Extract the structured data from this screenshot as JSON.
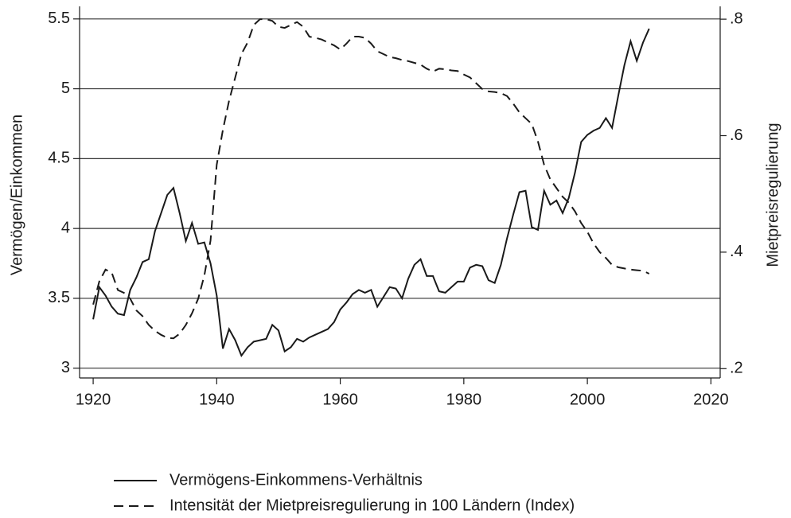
{
  "chart_data": {
    "type": "line",
    "xlabel": null,
    "ylabel": "Vermögen/Einkommen",
    "y2label": "Mietpreisregulierung",
    "x": [
      1920,
      1921,
      1922,
      1923,
      1924,
      1925,
      1926,
      1927,
      1928,
      1929,
      1930,
      1931,
      1932,
      1933,
      1934,
      1935,
      1936,
      1937,
      1938,
      1939,
      1940,
      1941,
      1942,
      1943,
      1944,
      1945,
      1946,
      1947,
      1948,
      1949,
      1950,
      1951,
      1952,
      1953,
      1954,
      1955,
      1956,
      1957,
      1958,
      1959,
      1960,
      1961,
      1962,
      1963,
      1964,
      1965,
      1966,
      1967,
      1968,
      1969,
      1970,
      1971,
      1972,
      1973,
      1974,
      1975,
      1976,
      1977,
      1978,
      1979,
      1980,
      1981,
      1982,
      1983,
      1984,
      1985,
      1986,
      1987,
      1988,
      1989,
      1990,
      1991,
      1992,
      1993,
      1994,
      1995,
      1996,
      1997,
      1998,
      1999,
      2000,
      2001,
      2002,
      2003,
      2004,
      2005,
      2006,
      2007,
      2008,
      2009,
      2010
    ],
    "series": [
      {
        "name": "Vermögens-Einkommens-Verhältnis",
        "color": "#1a1a1a",
        "linestyle": "solid",
        "values": [
          3.35,
          3.58,
          3.52,
          3.44,
          3.39,
          3.38,
          3.56,
          3.65,
          3.76,
          3.78,
          3.98,
          4.11,
          4.24,
          4.29,
          4.11,
          3.91,
          4.04,
          3.89,
          3.9,
          3.75,
          3.52,
          3.14,
          3.28,
          3.2,
          3.09,
          3.15,
          3.19,
          3.2,
          3.21,
          3.31,
          3.27,
          3.12,
          3.15,
          3.21,
          3.19,
          3.22,
          3.24,
          3.26,
          3.28,
          3.33,
          3.42,
          3.47,
          3.53,
          3.56,
          3.54,
          3.56,
          3.44,
          3.51,
          3.58,
          3.57,
          3.5,
          3.64,
          3.74,
          3.78,
          3.66,
          3.66,
          3.55,
          3.54,
          3.58,
          3.62,
          3.62,
          3.72,
          3.74,
          3.73,
          3.63,
          3.61,
          3.74,
          3.93,
          4.1,
          4.26,
          4.27,
          4.01,
          3.99,
          4.27,
          4.17,
          4.2,
          4.11,
          4.22,
          4.4,
          4.62,
          4.67,
          4.7,
          4.72,
          4.79,
          4.72,
          4.95,
          5.17,
          5.34,
          5.2,
          5.33,
          5.43
        ]
      },
      {
        "name": "Intensität der Mietpreisregulierung in 100 Ländern (Index)",
        "color": "#1a1a1a",
        "linestyle": "dashed",
        "axis": "y2",
        "values": [
          0.31,
          0.35,
          0.37,
          0.365,
          0.335,
          0.33,
          0.32,
          0.3,
          0.29,
          0.275,
          0.265,
          0.258,
          0.253,
          0.252,
          0.26,
          0.275,
          0.295,
          0.32,
          0.36,
          0.42,
          0.55,
          0.61,
          0.66,
          0.7,
          0.74,
          0.76,
          0.79,
          0.8,
          0.8,
          0.797,
          0.787,
          0.785,
          0.79,
          0.795,
          0.787,
          0.77,
          0.768,
          0.765,
          0.76,
          0.755,
          0.748,
          0.758,
          0.77,
          0.77,
          0.768,
          0.758,
          0.745,
          0.74,
          0.735,
          0.733,
          0.73,
          0.728,
          0.725,
          0.722,
          0.715,
          0.71,
          0.715,
          0.714,
          0.712,
          0.711,
          0.705,
          0.7,
          0.69,
          0.68,
          0.676,
          0.675,
          0.673,
          0.668,
          0.655,
          0.64,
          0.63,
          0.62,
          0.59,
          0.55,
          0.525,
          0.51,
          0.495,
          0.485,
          0.47,
          0.45,
          0.435,
          0.415,
          0.4,
          0.39,
          0.378,
          0.374,
          0.372,
          0.37,
          0.369,
          0.368,
          0.363
        ]
      }
    ],
    "xlim": [
      1917.8,
      2021.5
    ],
    "xticks": [
      1920,
      1940,
      1960,
      1980,
      2000,
      2020
    ],
    "ylim": [
      2.93,
      5.59
    ],
    "yticks": [
      3,
      3.5,
      4,
      4.5,
      5,
      5.5
    ],
    "y2lim": [
      0.184,
      0.822
    ],
    "y2ticks": [
      {
        "value": 0.2,
        "label": ".2"
      },
      {
        "value": 0.4,
        "label": ".4"
      },
      {
        "value": 0.6,
        "label": ".6"
      },
      {
        "value": 0.8,
        "label": ".8"
      }
    ],
    "grid": true,
    "legend": "bottom"
  }
}
